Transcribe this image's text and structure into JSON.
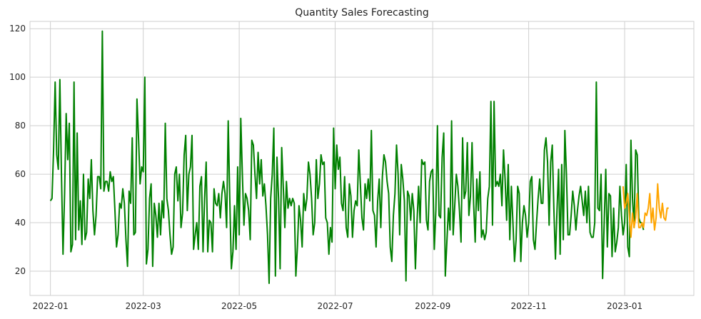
{
  "chart_data": {
    "type": "line",
    "title": "Quantity Sales Forecasting",
    "xlabel": "",
    "ylabel": "",
    "ylim": [
      10,
      123
    ],
    "xlim": [
      "2021-12-19",
      "2023-02-14"
    ],
    "grid": true,
    "y_ticks": [
      20,
      40,
      60,
      80,
      100,
      120
    ],
    "x_ticks": [
      "2022-01",
      "2022-03",
      "2022-05",
      "2022-07",
      "2022-09",
      "2022-11",
      "2023-01"
    ],
    "x_tick_dates": [
      "2022-01-01",
      "2022-03-01",
      "2022-05-01",
      "2022-07-01",
      "2022-09-01",
      "2022-11-01",
      "2023-01-01"
    ],
    "series": [
      {
        "color": "#008000",
        "start": "2022-01-01",
        "values": [
          49,
          50,
          70,
          98,
          68,
          62,
          99,
          60,
          27,
          52,
          85,
          66,
          81,
          28,
          31,
          98,
          33,
          77,
          37,
          49,
          31,
          60,
          33,
          36,
          58,
          50,
          66,
          45,
          35,
          43,
          59,
          59,
          54,
          119,
          53,
          57,
          57,
          53,
          61,
          57,
          59,
          45,
          30,
          35,
          48,
          46,
          54,
          48,
          33,
          22,
          53,
          48,
          75,
          35,
          36,
          91,
          75,
          56,
          63,
          61,
          100,
          23,
          29,
          50,
          56,
          22,
          48,
          43,
          34,
          48,
          35,
          49,
          42,
          81,
          50,
          45,
          35,
          27,
          30,
          60,
          63,
          49,
          60,
          38,
          44,
          68,
          76,
          45,
          60,
          63,
          76,
          29,
          35,
          40,
          29,
          55,
          59,
          28,
          50,
          65,
          28,
          41,
          40,
          28,
          54,
          48,
          47,
          52,
          42,
          52,
          57,
          52,
          38,
          82,
          50,
          21,
          28,
          47,
          29,
          63,
          35,
          83,
          60,
          39,
          52,
          50,
          45,
          33,
          74,
          72,
          60,
          50,
          69,
          56,
          66,
          51,
          56,
          47,
          35,
          15,
          50,
          60,
          79,
          18,
          67,
          50,
          21,
          71,
          55,
          38,
          57,
          46,
          50,
          47,
          50,
          48,
          18,
          30,
          47,
          41,
          30,
          52,
          45,
          50,
          65,
          60,
          50,
          35,
          40,
          66,
          50,
          56,
          68,
          64,
          65,
          42,
          40,
          27,
          38,
          32,
          79,
          54,
          72,
          62,
          67,
          48,
          45,
          59,
          38,
          34,
          56,
          51,
          34,
          45,
          49,
          47,
          70,
          56,
          42,
          37,
          56,
          50,
          58,
          49,
          78,
          45,
          43,
          30,
          49,
          58,
          38,
          59,
          68,
          65,
          57,
          52,
          30,
          24,
          43,
          52,
          72,
          60,
          35,
          64,
          58,
          49,
          16,
          53,
          51,
          41,
          52,
          45,
          21,
          40,
          55,
          40,
          66,
          64,
          65,
          41,
          37,
          57,
          61,
          62,
          29,
          45,
          80,
          43,
          42,
          67,
          77,
          18,
          32,
          46,
          37,
          82,
          35,
          47,
          60,
          55,
          45,
          32,
          75,
          50,
          53,
          73,
          43,
          51,
          73,
          48,
          32,
          58,
          45,
          61,
          34,
          37,
          33,
          36,
          50,
          55,
          90,
          39,
          90,
          55,
          57,
          55,
          60,
          47,
          70,
          58,
          41,
          64,
          33,
          55,
          40,
          24,
          33,
          55,
          52,
          24,
          40,
          47,
          43,
          34,
          40,
          57,
          59,
          33,
          29,
          40,
          50,
          58,
          48,
          48,
          70,
          75,
          65,
          39,
          65,
          72,
          46,
          25,
          45,
          62,
          27,
          64,
          33,
          78,
          60,
          35,
          35,
          43,
          53,
          47,
          37,
          45,
          51,
          55,
          49,
          43,
          53,
          40,
          55,
          36,
          34,
          34,
          40,
          98,
          46,
          45,
          60,
          17,
          40,
          62,
          30,
          52,
          51,
          26,
          46,
          28,
          32,
          38,
          55,
          43,
          35,
          40,
          64,
          30,
          26,
          74,
          50,
          38,
          70,
          68,
          42,
          40,
          40,
          37
        ]
      },
      {
        "color": "#ffa500",
        "start": "2022-12-31",
        "values": [
          55,
          46,
          48,
          52,
          43,
          34,
          44,
          38,
          42,
          52,
          38,
          38,
          40,
          38,
          44,
          43,
          46,
          52,
          40,
          46,
          37,
          42,
          56,
          46,
          42,
          48,
          42,
          41,
          46,
          46
        ]
      }
    ]
  }
}
